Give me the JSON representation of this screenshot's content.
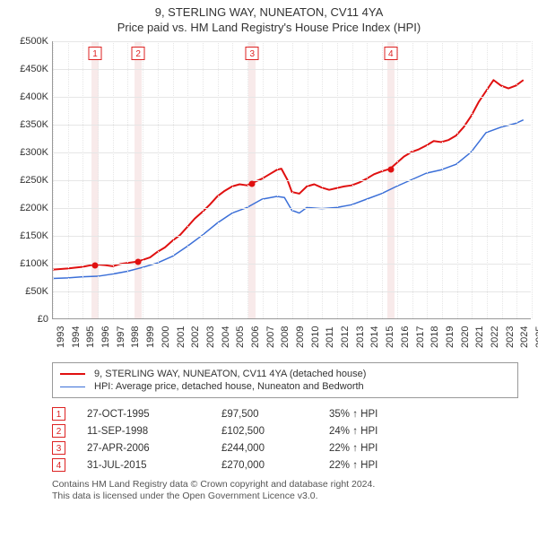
{
  "title": {
    "line1": "9, STERLING WAY, NUNEATON, CV11 4YA",
    "line2": "Price paid vs. HM Land Registry's House Price Index (HPI)"
  },
  "chart": {
    "type": "line",
    "background_color": "#ffffff",
    "grid_color": "#e6e6e6",
    "axis_color": "#999999",
    "marker_band_color": "#f8eaea",
    "marker_box_border": "#dd2222",
    "marker_box_text": "#dd2222",
    "label_fontsize": 11,
    "x": {
      "min": 1993,
      "max": 2025,
      "tick_step": 1,
      "rotation": -90
    },
    "y": {
      "min": 0,
      "max": 500000,
      "tick_step": 50000,
      "tick_labels": [
        "£0",
        "£50K",
        "£100K",
        "£150K",
        "£200K",
        "£250K",
        "£300K",
        "£350K",
        "£400K",
        "£450K",
        "£500K"
      ]
    },
    "series": [
      {
        "id": "property",
        "label": "9, STERLING WAY, NUNEATON, CV11 4YA (detached house)",
        "color": "#e01010",
        "line_width": 2,
        "points": [
          [
            1993.0,
            88000
          ],
          [
            1994.0,
            90000
          ],
          [
            1995.0,
            93000
          ],
          [
            1995.82,
            97500
          ],
          [
            1996.5,
            96000
          ],
          [
            1997.0,
            94000
          ],
          [
            1997.5,
            98000
          ],
          [
            1998.0,
            100000
          ],
          [
            1998.7,
            102500
          ],
          [
            1999.5,
            110000
          ],
          [
            2000.0,
            120000
          ],
          [
            2000.5,
            128000
          ],
          [
            2001.0,
            140000
          ],
          [
            2001.5,
            150000
          ],
          [
            2002.0,
            165000
          ],
          [
            2002.5,
            180000
          ],
          [
            2003.0,
            192000
          ],
          [
            2003.5,
            205000
          ],
          [
            2004.0,
            220000
          ],
          [
            2004.5,
            230000
          ],
          [
            2005.0,
            238000
          ],
          [
            2005.5,
            242000
          ],
          [
            2006.0,
            240000
          ],
          [
            2006.32,
            244000
          ],
          [
            2007.0,
            252000
          ],
          [
            2007.5,
            260000
          ],
          [
            2008.0,
            268000
          ],
          [
            2008.3,
            270000
          ],
          [
            2008.7,
            250000
          ],
          [
            2009.0,
            228000
          ],
          [
            2009.5,
            225000
          ],
          [
            2010.0,
            238000
          ],
          [
            2010.5,
            242000
          ],
          [
            2011.0,
            236000
          ],
          [
            2011.5,
            232000
          ],
          [
            2012.0,
            235000
          ],
          [
            2012.5,
            238000
          ],
          [
            2013.0,
            240000
          ],
          [
            2013.5,
            245000
          ],
          [
            2014.0,
            252000
          ],
          [
            2014.5,
            260000
          ],
          [
            2015.0,
            265000
          ],
          [
            2015.58,
            270000
          ],
          [
            2016.0,
            280000
          ],
          [
            2016.5,
            292000
          ],
          [
            2017.0,
            300000
          ],
          [
            2017.5,
            305000
          ],
          [
            2018.0,
            312000
          ],
          [
            2018.5,
            320000
          ],
          [
            2019.0,
            318000
          ],
          [
            2019.5,
            322000
          ],
          [
            2020.0,
            330000
          ],
          [
            2020.5,
            345000
          ],
          [
            2021.0,
            365000
          ],
          [
            2021.5,
            390000
          ],
          [
            2022.0,
            410000
          ],
          [
            2022.5,
            430000
          ],
          [
            2023.0,
            420000
          ],
          [
            2023.5,
            415000
          ],
          [
            2024.0,
            420000
          ],
          [
            2024.5,
            430000
          ]
        ]
      },
      {
        "id": "hpi",
        "label": "HPI: Average price, detached house, Nuneaton and Bedworth",
        "color": "#3b6fd8",
        "line_width": 1.5,
        "points": [
          [
            1993.0,
            72000
          ],
          [
            1994.0,
            73000
          ],
          [
            1995.0,
            75000
          ],
          [
            1996.0,
            76000
          ],
          [
            1997.0,
            80000
          ],
          [
            1998.0,
            85000
          ],
          [
            1999.0,
            92000
          ],
          [
            2000.0,
            100000
          ],
          [
            2001.0,
            112000
          ],
          [
            2002.0,
            130000
          ],
          [
            2003.0,
            150000
          ],
          [
            2004.0,
            172000
          ],
          [
            2005.0,
            190000
          ],
          [
            2006.0,
            200000
          ],
          [
            2007.0,
            215000
          ],
          [
            2008.0,
            220000
          ],
          [
            2008.5,
            218000
          ],
          [
            2009.0,
            195000
          ],
          [
            2009.5,
            190000
          ],
          [
            2010.0,
            200000
          ],
          [
            2011.0,
            198000
          ],
          [
            2012.0,
            200000
          ],
          [
            2013.0,
            205000
          ],
          [
            2014.0,
            215000
          ],
          [
            2015.0,
            225000
          ],
          [
            2016.0,
            238000
          ],
          [
            2017.0,
            250000
          ],
          [
            2018.0,
            262000
          ],
          [
            2019.0,
            268000
          ],
          [
            2020.0,
            278000
          ],
          [
            2021.0,
            300000
          ],
          [
            2022.0,
            335000
          ],
          [
            2023.0,
            345000
          ],
          [
            2024.0,
            352000
          ],
          [
            2024.5,
            358000
          ]
        ]
      }
    ],
    "sale_markers": [
      {
        "n": "1",
        "x": 1995.82,
        "y": 97500
      },
      {
        "n": "2",
        "x": 1998.7,
        "y": 102500
      },
      {
        "n": "3",
        "x": 2006.32,
        "y": 244000
      },
      {
        "n": "4",
        "x": 2015.58,
        "y": 270000
      }
    ]
  },
  "legend": {
    "items": [
      {
        "color": "#e01010",
        "label": "9, STERLING WAY, NUNEATON, CV11 4YA (detached house)"
      },
      {
        "color": "#3b6fd8",
        "label": "HPI: Average price, detached house, Nuneaton and Bedworth"
      }
    ]
  },
  "events": [
    {
      "n": "1",
      "date": "27-OCT-1995",
      "price": "£97,500",
      "hpi": "35% ↑ HPI"
    },
    {
      "n": "2",
      "date": "11-SEP-1998",
      "price": "£102,500",
      "hpi": "24% ↑ HPI"
    },
    {
      "n": "3",
      "date": "27-APR-2006",
      "price": "£244,000",
      "hpi": "22% ↑ HPI"
    },
    {
      "n": "4",
      "date": "31-JUL-2015",
      "price": "£270,000",
      "hpi": "22% ↑ HPI"
    }
  ],
  "footer": {
    "line1": "Contains HM Land Registry data © Crown copyright and database right 2024.",
    "line2": "This data is licensed under the Open Government Licence v3.0."
  }
}
